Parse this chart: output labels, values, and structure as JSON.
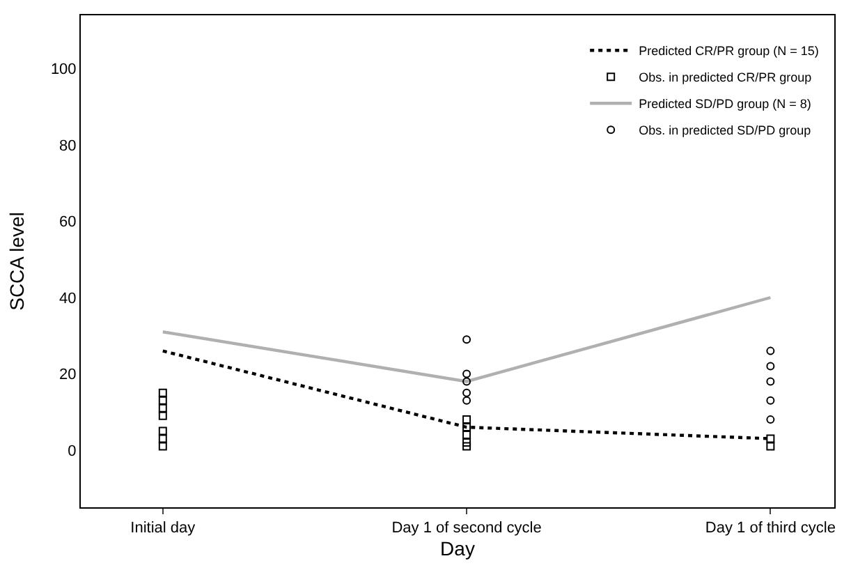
{
  "chart_data": {
    "type": "line",
    "xlabel": "Day",
    "ylabel": "SCCA level",
    "categories": [
      "Initial day",
      "Day 1 of second cycle",
      "Day 1 of third cycle"
    ],
    "ylim": [
      -15,
      114
    ],
    "yticks": [
      0,
      20,
      40,
      60,
      80,
      100
    ],
    "legend": "top right",
    "series": [
      {
        "name": "Predicted CR/PR group (N = 15)",
        "color": "#000000",
        "line_style": "dotted",
        "marker": "none",
        "values": [
          26,
          6,
          3
        ]
      },
      {
        "name": "Obs. in predicted CR/PR group",
        "type": "scatter",
        "color": "#000000",
        "marker": "square",
        "x": [
          "Initial day",
          "Initial day",
          "Initial day",
          "Initial day",
          "Initial day",
          "Initial day",
          "Initial day",
          "Day 1 of second cycle",
          "Day 1 of second cycle",
          "Day 1 of second cycle",
          "Day 1 of second cycle",
          "Day 1 of second cycle",
          "Day 1 of third cycle",
          "Day 1 of third cycle",
          "Day 1 of third cycle"
        ],
        "values": [
          15,
          13,
          11,
          9,
          5,
          3,
          1,
          8,
          6,
          4,
          2,
          1,
          3,
          null,
          1
        ]
      },
      {
        "name": "Predicted SD/PD group (N = 8)",
        "color": "#b0b0b0",
        "line_style": "solid",
        "marker": "none",
        "values": [
          31,
          18,
          40
        ]
      },
      {
        "name": "Obs. in predicted SD/PD group",
        "type": "scatter",
        "color": "#000000",
        "marker": "circle",
        "x": [
          "Day 1 of second cycle",
          "Day 1 of second cycle",
          "Day 1 of second cycle",
          "Day 1 of second cycle",
          "Day 1 of second cycle",
          "Day 1 of third cycle",
          "Day 1 of third cycle",
          "Day 1 of third cycle",
          "Day 1 of third cycle",
          "Day 1 of third cycle",
          "Day 1 of third cycle"
        ],
        "values": [
          29,
          20,
          18,
          15,
          13,
          26,
          22,
          18,
          13,
          8,
          null
        ]
      }
    ]
  }
}
